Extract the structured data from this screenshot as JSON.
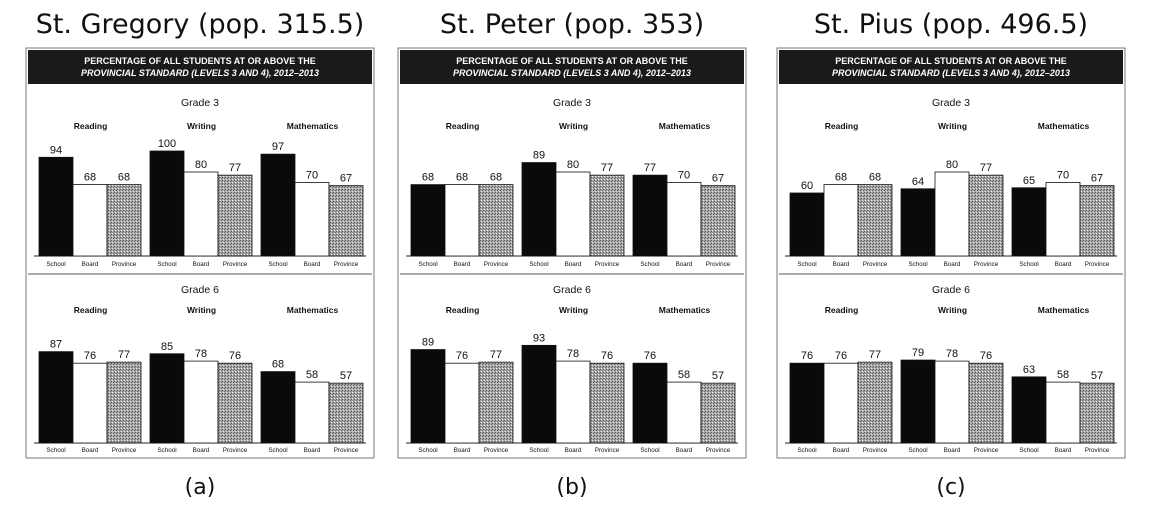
{
  "chart_data": [
    {
      "type": "bar",
      "title": "St. Gregory (pop. 315.5)",
      "panel_label": "(a)",
      "banner": [
        "PERCENTAGE OF ALL STUDENTS AT OR ABOVE THE",
        "PROVINCIAL STANDARD (LEVELS 3 AND 4), 2012–2013"
      ],
      "categories": [
        "School",
        "Board",
        "Province"
      ],
      "ylim": [
        0,
        100
      ],
      "grades": [
        {
          "label": "Grade 3",
          "subjects": [
            {
              "name": "Reading",
              "values": [
                94,
                68,
                68
              ]
            },
            {
              "name": "Writing",
              "values": [
                100,
                80,
                77
              ]
            },
            {
              "name": "Mathematics",
              "values": [
                97,
                70,
                67
              ]
            }
          ]
        },
        {
          "label": "Grade 6",
          "subjects": [
            {
              "name": "Reading",
              "values": [
                87,
                76,
                77
              ]
            },
            {
              "name": "Writing",
              "values": [
                85,
                78,
                76
              ]
            },
            {
              "name": "Mathematics",
              "values": [
                68,
                58,
                57
              ]
            }
          ]
        }
      ]
    },
    {
      "type": "bar",
      "title": "St. Peter (pop. 353)",
      "panel_label": "(b)",
      "banner": [
        "PERCENTAGE OF ALL STUDENTS AT OR ABOVE THE",
        "PROVINCIAL STANDARD (LEVELS 3 AND 4), 2012–2013"
      ],
      "categories": [
        "School",
        "Board",
        "Province"
      ],
      "ylim": [
        0,
        100
      ],
      "grades": [
        {
          "label": "Grade 3",
          "subjects": [
            {
              "name": "Reading",
              "values": [
                68,
                68,
                68
              ]
            },
            {
              "name": "Writing",
              "values": [
                89,
                80,
                77
              ]
            },
            {
              "name": "Mathematics",
              "values": [
                77,
                70,
                67
              ]
            }
          ]
        },
        {
          "label": "Grade 6",
          "subjects": [
            {
              "name": "Reading",
              "values": [
                89,
                76,
                77
              ]
            },
            {
              "name": "Writing",
              "values": [
                93,
                78,
                76
              ]
            },
            {
              "name": "Mathematics",
              "values": [
                76,
                58,
                57
              ]
            }
          ]
        }
      ]
    },
    {
      "type": "bar",
      "title": "St. Pius (pop. 496.5)",
      "panel_label": "(c)",
      "banner": [
        "PERCENTAGE OF ALL STUDENTS AT OR ABOVE THE",
        "PROVINCIAL STANDARD (LEVELS 3 AND 4), 2012–2013"
      ],
      "categories": [
        "School",
        "Board",
        "Province"
      ],
      "ylim": [
        0,
        100
      ],
      "grades": [
        {
          "label": "Grade 3",
          "subjects": [
            {
              "name": "Reading",
              "values": [
                60,
                68,
                68
              ]
            },
            {
              "name": "Writing",
              "values": [
                64,
                80,
                77
              ]
            },
            {
              "name": "Mathematics",
              "values": [
                65,
                70,
                67
              ]
            }
          ]
        },
        {
          "label": "Grade 6",
          "subjects": [
            {
              "name": "Reading",
              "values": [
                76,
                76,
                77
              ]
            },
            {
              "name": "Writing",
              "values": [
                79,
                78,
                76
              ]
            },
            {
              "name": "Mathematics",
              "values": [
                63,
                58,
                57
              ]
            }
          ]
        }
      ]
    }
  ],
  "colors": {
    "school": "#0a0a0a",
    "board": "#ffffff",
    "province": "#9a9a9a",
    "banner": "#1a1a1a"
  }
}
